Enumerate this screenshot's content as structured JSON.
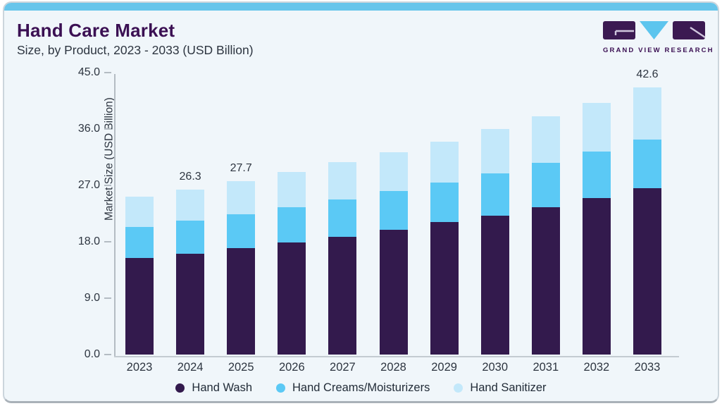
{
  "header": {
    "title": "Hand Care Market",
    "subtitle": "Size, by Product, 2023 - 2033 (USD Billion)",
    "logo_text": "GRAND VIEW RESEARCH"
  },
  "colors": {
    "accent_bar": "#67c5eb",
    "title_text": "#3b1053",
    "body_text": "#2d3540",
    "card_background": "#f0f6fa",
    "axis_line": "#b4bcc3",
    "hand_wash": "#331a4d",
    "hand_creams": "#5bc9f5",
    "hand_sanitizer": "#c3e8fa",
    "logo_mark_purple": "#3b1a52",
    "logo_mark_blue": "#5cc5ee"
  },
  "chart_data": {
    "type": "bar",
    "stacked": true,
    "title": "Hand Care Market",
    "subtitle": "Size, by Product, 2023 - 2033 (USD Billion)",
    "xlabel": "",
    "ylabel": "Market Size (USD Billion)",
    "ylim": [
      0,
      45
    ],
    "yticks": [
      0,
      9,
      18,
      27,
      36,
      45
    ],
    "ytick_labels": [
      "0.0",
      "9.0",
      "18.0",
      "27.0",
      "36.0",
      "45.0"
    ],
    "grid": false,
    "legend_position": "bottom",
    "categories": [
      "2023",
      "2024",
      "2025",
      "2026",
      "2027",
      "2028",
      "2029",
      "2030",
      "2031",
      "2032",
      "2033"
    ],
    "series": [
      {
        "name": "Hand Wash",
        "color": "#331a4d",
        "values": [
          15.4,
          16.1,
          17.0,
          17.9,
          18.8,
          19.9,
          21.1,
          22.2,
          23.5,
          25.0,
          26.5
        ]
      },
      {
        "name": "Hand Creams/Moisturizers",
        "color": "#5bc9f5",
        "values": [
          5.0,
          5.3,
          5.4,
          5.6,
          6.0,
          6.2,
          6.3,
          6.7,
          7.1,
          7.4,
          7.8
        ]
      },
      {
        "name": "Hand Sanitizer",
        "color": "#c3e8fa",
        "values": [
          4.8,
          4.9,
          5.3,
          5.6,
          5.9,
          6.2,
          6.6,
          7.1,
          7.4,
          7.8,
          8.3
        ]
      }
    ],
    "totals": [
      25.2,
      26.3,
      27.7,
      29.1,
      30.7,
      32.3,
      34.0,
      36.0,
      38.0,
      40.2,
      42.6
    ],
    "total_labels": {
      "2024": "26.3",
      "2025": "27.7",
      "2033": "42.6"
    }
  }
}
